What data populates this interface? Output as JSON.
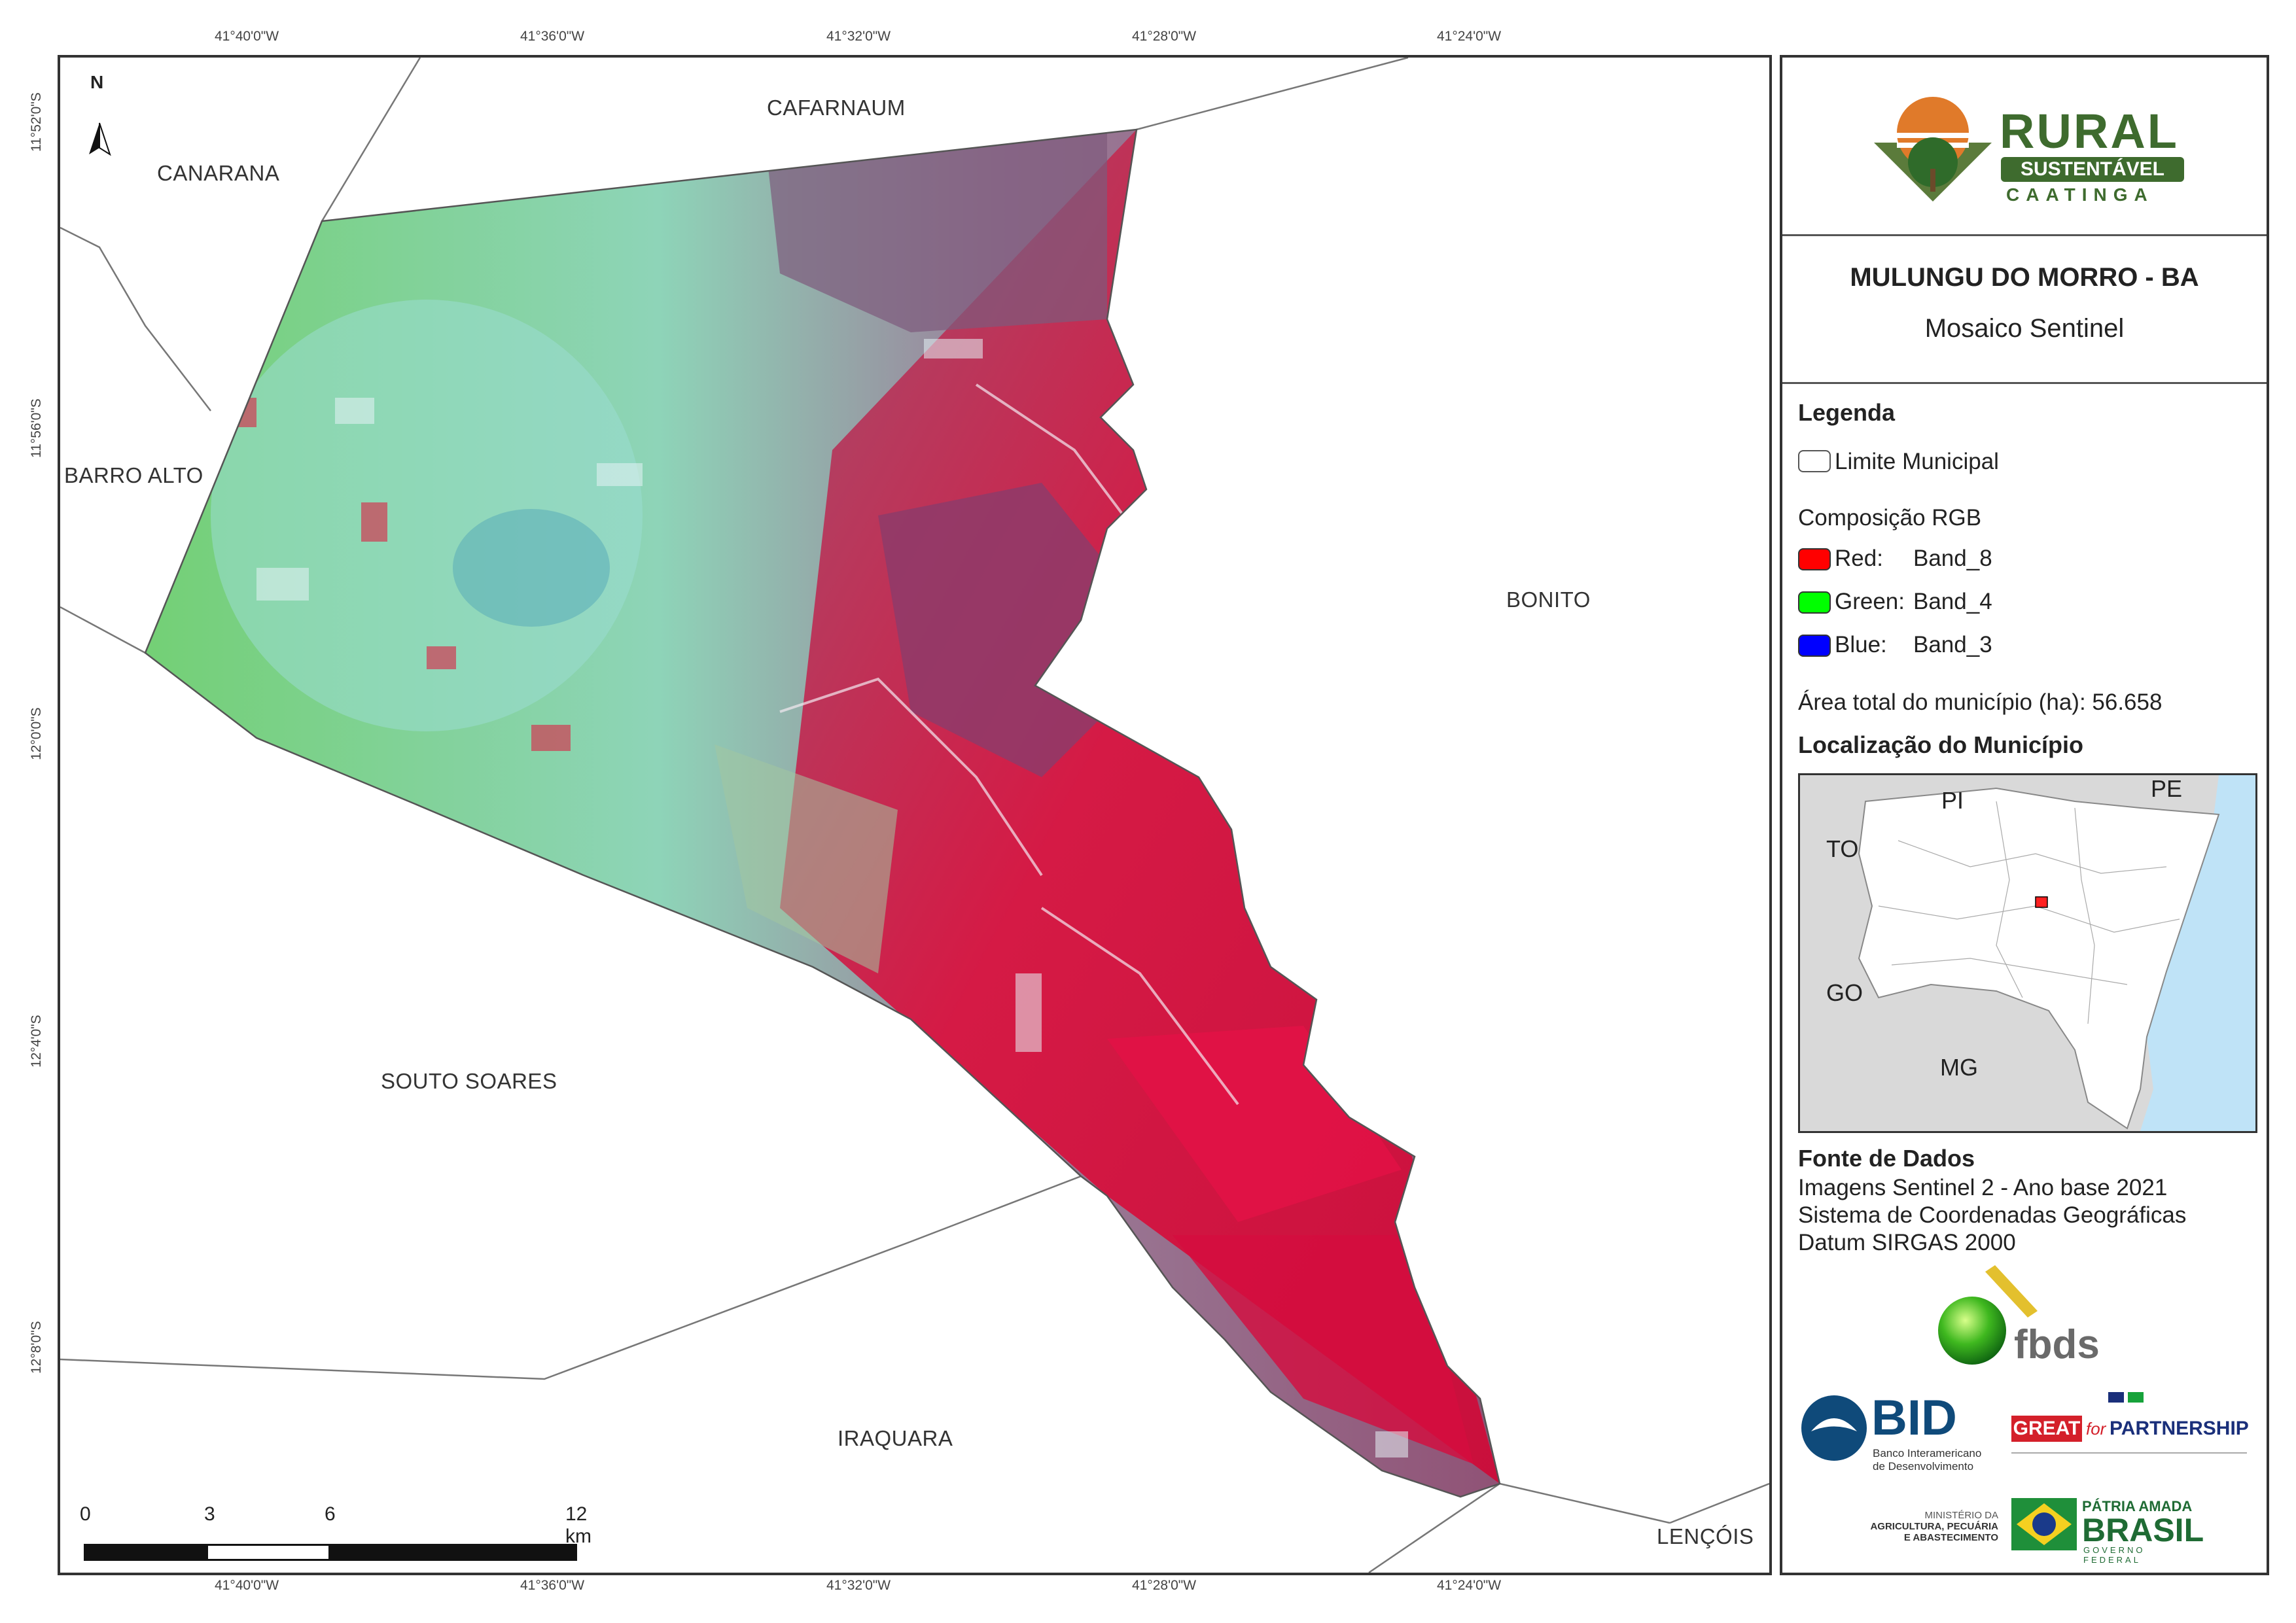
{
  "map": {
    "north_label": "N",
    "top_ticks": [
      "41°40'0\"W",
      "41°36'0\"W",
      "41°32'0\"W",
      "41°28'0\"W",
      "41°24'0\"W"
    ],
    "bottom_ticks": [
      "41°40'0\"W",
      "41°36'0\"W",
      "41°32'0\"W",
      "41°28'0\"W",
      "41°24'0\"W"
    ],
    "left_ticks": [
      "11°52'0\"S",
      "11°56'0\"S",
      "12°0'0\"S",
      "12°4'0\"S",
      "12°8'0\"S"
    ],
    "places": {
      "cafarnaum": "CAFARNAUM",
      "canarana": "CANARANA",
      "barro_alto": "BARRO ALTO",
      "bonito": "BONITO",
      "souto_soares": "SOUTO SOARES",
      "iraquara": "IRAQUARA",
      "lencois": "LENÇÓIS"
    },
    "scale": {
      "labels": [
        "0",
        "3",
        "6",
        "12 km"
      ]
    }
  },
  "panel": {
    "logo": {
      "rural": "RURAL",
      "sustentavel": "SUSTENTÁVEL",
      "caatinga": "CAATINGA"
    },
    "title": "MULUNGU DO MORRO - BA",
    "subtitle": "Mosaico Sentinel",
    "legend": {
      "heading": "Legenda",
      "limit_label": "Limite Municipal",
      "rgb_heading": "Composição RGB",
      "red": {
        "channel": "Red:",
        "band": "Band_8",
        "color": "#ff0000"
      },
      "green": {
        "channel": "Green:",
        "band": "Band_4",
        "color": "#00ff00"
      },
      "blue": {
        "channel": "Blue:",
        "band": "Band_3",
        "color": "#0000ff"
      },
      "area": "Área total do município (ha): 56.658"
    },
    "location": {
      "heading": "Localização do Município",
      "states": {
        "pi": "PI",
        "pe": "PE",
        "to": "TO",
        "go": "GO",
        "mg": "MG"
      }
    },
    "sources": {
      "heading": "Fonte de Dados",
      "lines": [
        "Imagens Sentinel 2 - Ano base 2021",
        "Sistema de Coordenadas Geográficas",
        "Datum SIRGAS 2000"
      ]
    },
    "logos": {
      "fbds": "fbds",
      "bid": "BID",
      "bid_sub1": "Banco Interamericano",
      "bid_sub2": "de Desenvolvimento",
      "great": "GREAT",
      "great_for": "for",
      "great_partnership": "PARTNERSHIP",
      "ministerio1": "MINISTÉRIO DA",
      "ministerio2": "AGRICULTURA, PECUÁRIA",
      "ministerio3": "E ABASTECIMENTO",
      "patria": "PÁTRIA AMADA",
      "brasil": "BRASIL",
      "governo": "GOVERNO FEDERAL"
    }
  }
}
